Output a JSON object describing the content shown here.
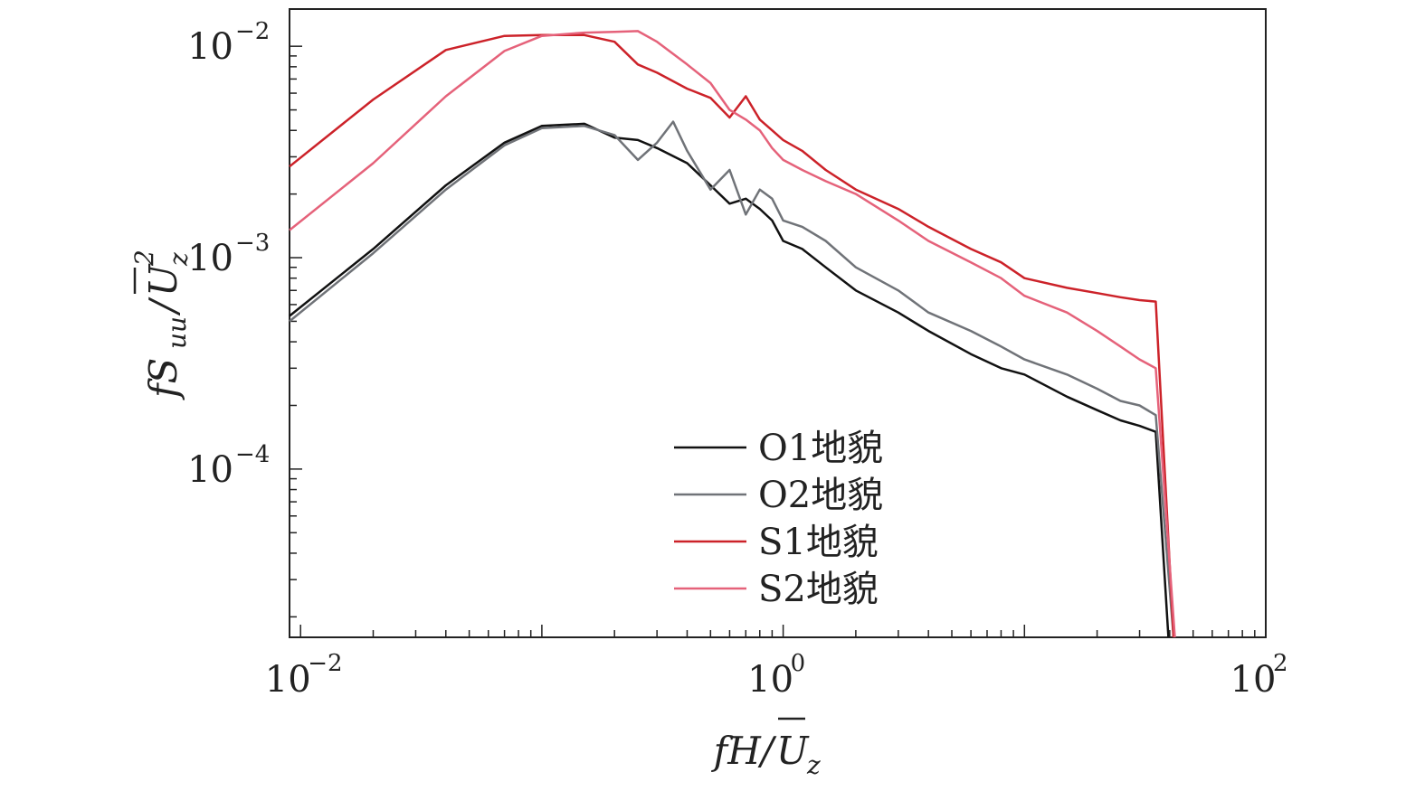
{
  "chart_data": {
    "type": "line",
    "xscale": "log",
    "yscale": "log",
    "xlim": [
      0.009,
      100
    ],
    "ylim": [
      1.6e-05,
      0.015
    ],
    "xticks": [
      {
        "value": 0.01,
        "base": "10",
        "exp": "−2"
      },
      {
        "value": 1,
        "base": "10",
        "exp": "0"
      },
      {
        "value": 100,
        "base": "10",
        "exp": "2"
      }
    ],
    "yticks": [
      {
        "value": 0.0001,
        "base": "10",
        "exp": "−4"
      },
      {
        "value": 0.001,
        "base": "10",
        "exp": "−3"
      },
      {
        "value": 0.01,
        "base": "10",
        "exp": "−2"
      }
    ],
    "xlabel": {
      "main": "fH/",
      "bar": "U",
      "sub": "z"
    },
    "ylabel": {
      "main": "fS",
      "sub": "uu",
      "slash": "/",
      "bar": "U",
      "sub2": "z",
      "sup": "2"
    },
    "legend_position": "lower-center",
    "series": [
      {
        "name": "O1地貌",
        "color": "#111111",
        "x": [
          0.009,
          0.02,
          0.04,
          0.07,
          0.1,
          0.15,
          0.2,
          0.25,
          0.3,
          0.4,
          0.5,
          0.6,
          0.7,
          0.8,
          0.9,
          1.0,
          1.2,
          1.5,
          2,
          3,
          4,
          6,
          8,
          10,
          15,
          20,
          25,
          30,
          35,
          39.5
        ],
        "y": [
          0.00053,
          0.0011,
          0.0022,
          0.0035,
          0.0042,
          0.0043,
          0.0037,
          0.0036,
          0.0033,
          0.0028,
          0.0022,
          0.0018,
          0.0019,
          0.0017,
          0.0015,
          0.0012,
          0.0011,
          0.0009,
          0.0007,
          0.00055,
          0.00045,
          0.00035,
          0.0003,
          0.00028,
          0.00022,
          0.00019,
          0.00017,
          0.00016,
          0.00015,
          1.6e-05
        ]
      },
      {
        "name": "O2地貌",
        "color": "#707378",
        "x": [
          0.009,
          0.02,
          0.04,
          0.07,
          0.1,
          0.15,
          0.2,
          0.25,
          0.3,
          0.35,
          0.4,
          0.5,
          0.6,
          0.7,
          0.8,
          0.9,
          1.0,
          1.2,
          1.5,
          2,
          3,
          4,
          6,
          8,
          10,
          15,
          20,
          25,
          30,
          35,
          41.5
        ],
        "y": [
          0.0005,
          0.00105,
          0.0021,
          0.0034,
          0.0041,
          0.0042,
          0.0038,
          0.0029,
          0.0035,
          0.0044,
          0.0032,
          0.0021,
          0.0026,
          0.0016,
          0.0021,
          0.0019,
          0.0015,
          0.0014,
          0.0012,
          0.0009,
          0.0007,
          0.00055,
          0.00045,
          0.00038,
          0.00033,
          0.00028,
          0.00024,
          0.00021,
          0.0002,
          0.00018,
          1.6e-05
        ]
      },
      {
        "name": "S1地貌",
        "color": "#cc2229",
        "x": [
          0.009,
          0.02,
          0.04,
          0.07,
          0.1,
          0.15,
          0.2,
          0.25,
          0.3,
          0.4,
          0.5,
          0.6,
          0.7,
          0.8,
          0.9,
          1.0,
          1.2,
          1.5,
          2,
          3,
          4,
          6,
          8,
          10,
          15,
          20,
          25,
          30,
          35,
          41.5
        ],
        "y": [
          0.0027,
          0.0056,
          0.0096,
          0.0112,
          0.0113,
          0.0113,
          0.0105,
          0.0082,
          0.0075,
          0.0063,
          0.0057,
          0.0046,
          0.0058,
          0.0045,
          0.004,
          0.0036,
          0.0032,
          0.0026,
          0.0021,
          0.0017,
          0.0014,
          0.0011,
          0.00095,
          0.0008,
          0.00072,
          0.00068,
          0.00065,
          0.00063,
          0.00062,
          1.6e-05
        ]
      },
      {
        "name": "S2地貌",
        "color": "#e5627a",
        "x": [
          0.009,
          0.02,
          0.04,
          0.07,
          0.1,
          0.15,
          0.2,
          0.25,
          0.3,
          0.4,
          0.5,
          0.6,
          0.7,
          0.8,
          0.9,
          1.0,
          1.2,
          1.5,
          2,
          3,
          4,
          6,
          8,
          10,
          15,
          20,
          25,
          30,
          35,
          42
        ],
        "y": [
          0.00135,
          0.0028,
          0.0058,
          0.0095,
          0.0112,
          0.0116,
          0.0117,
          0.0118,
          0.0105,
          0.0082,
          0.0067,
          0.005,
          0.0045,
          0.004,
          0.0033,
          0.0029,
          0.0026,
          0.0023,
          0.002,
          0.0015,
          0.0012,
          0.00095,
          0.0008,
          0.00066,
          0.00055,
          0.00045,
          0.00038,
          0.00033,
          0.0003,
          1.6e-05
        ]
      }
    ]
  }
}
